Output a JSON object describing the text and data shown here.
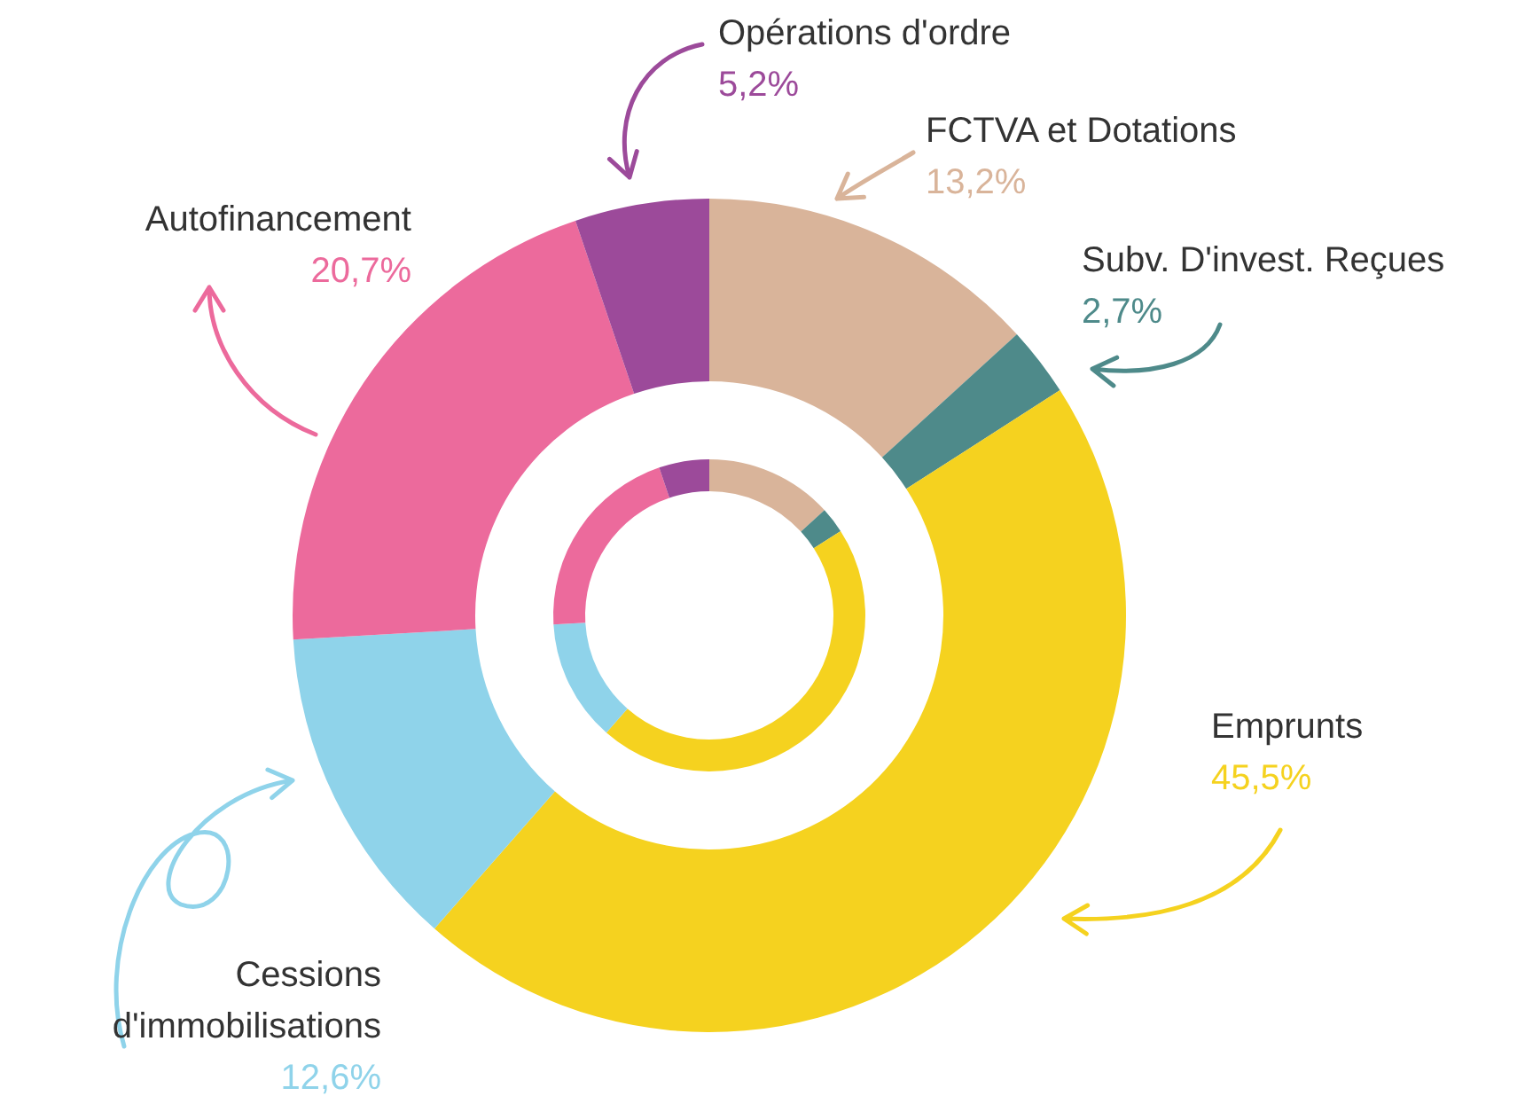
{
  "chart_data": {
    "type": "donut",
    "categories": [
      "FCTVA et Dotations",
      "Subv. D'invest. Reçues",
      "Emprunts",
      "Cessions d'immobilisations",
      "Autofinancement",
      "Opérations d'ordre"
    ],
    "series": [
      {
        "values": [
          13.2,
          2.7,
          45.5,
          12.6,
          20.7,
          5.2
        ]
      },
      {
        "values": [
          13.2,
          2.7,
          45.5,
          12.6,
          20.7,
          5.2
        ]
      }
    ],
    "value_labels": [
      "13,2%",
      "2,7%",
      "45,5%",
      "12,6%",
      "20,7%",
      "5,2%"
    ],
    "colors": [
      "#d9b49a",
      "#4e8a8a",
      "#f5d21f",
      "#8fd3ea",
      "#ec6a9c",
      "#9c4a9a"
    ]
  }
}
